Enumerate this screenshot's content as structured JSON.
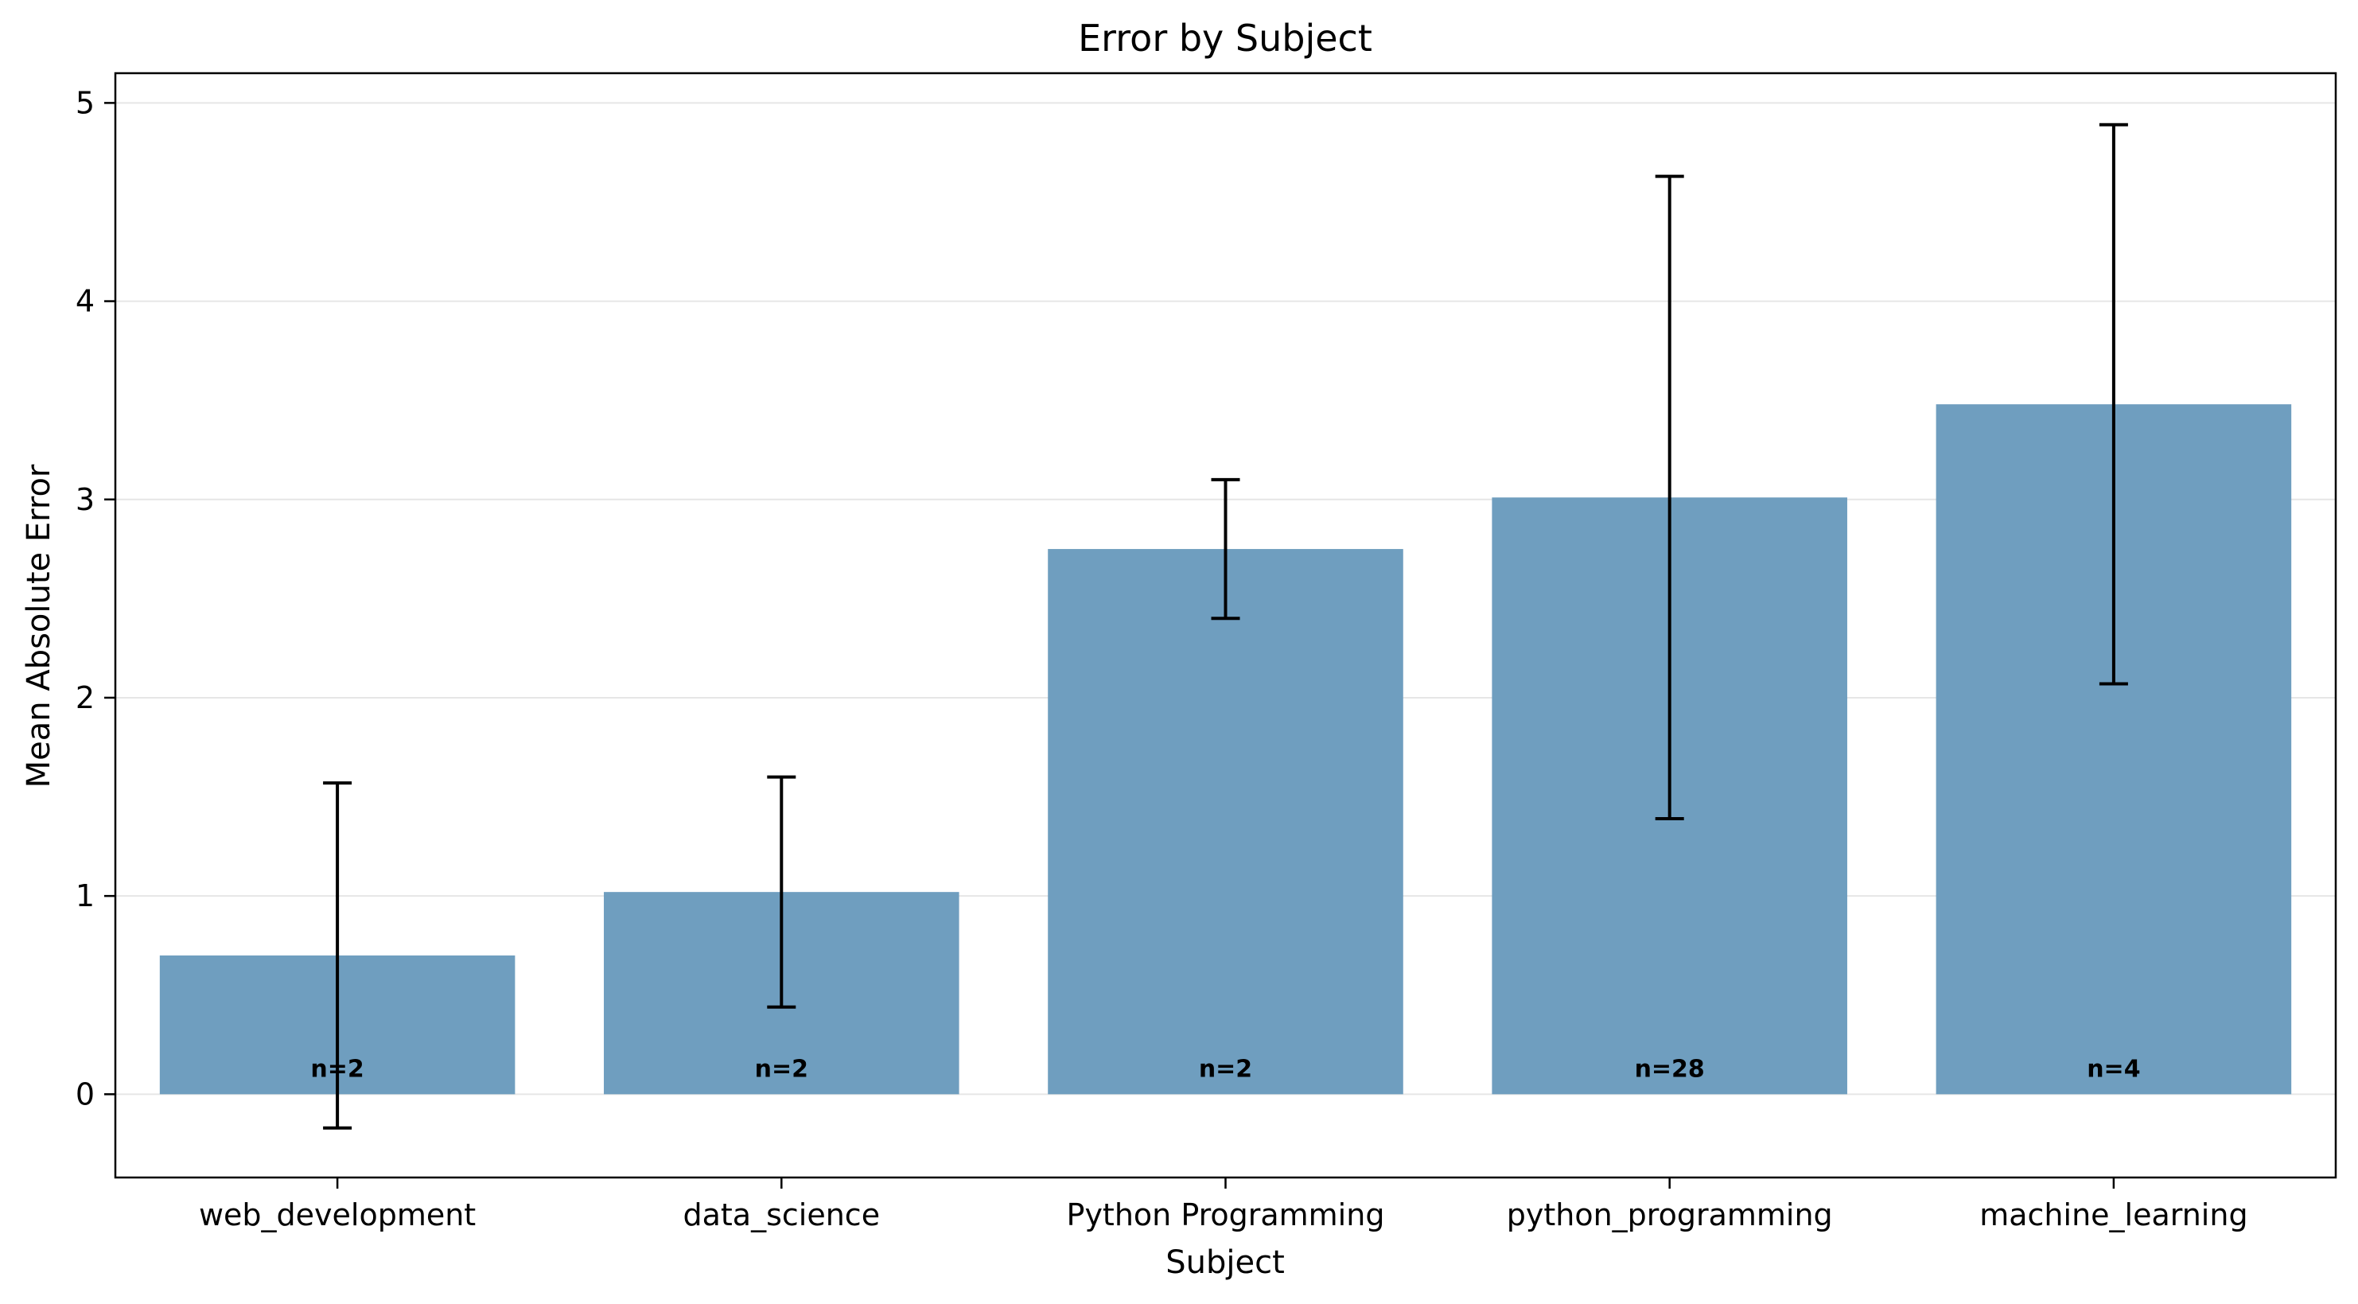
{
  "chart_data": {
    "type": "bar",
    "title": "Error by Subject",
    "xlabel": "Subject",
    "ylabel": "Mean Absolute Error",
    "categories": [
      "web_development",
      "data_science",
      "Python Programming",
      "python_programming",
      "machine_learning"
    ],
    "values": [
      0.7,
      1.02,
      2.75,
      3.01,
      3.48
    ],
    "error": [
      0.87,
      0.58,
      0.35,
      1.62,
      1.41
    ],
    "counts": [
      "n=2",
      "n=2",
      "n=2",
      "n=28",
      "n=4"
    ],
    "ylim": [
      -0.42,
      5.15
    ],
    "yticks": [
      "0",
      "1",
      "2",
      "3",
      "4",
      "5"
    ],
    "grid": "horizontal",
    "colors": {
      "bar": "#6f9ebf",
      "grid": "#e6e6e6",
      "error_bar": "#000000",
      "axes": "#000000"
    }
  }
}
